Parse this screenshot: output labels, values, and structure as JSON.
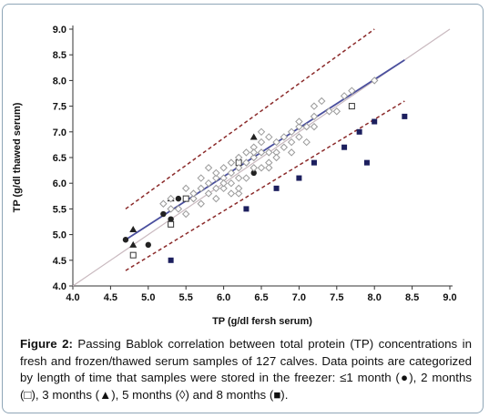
{
  "chart_data": {
    "type": "scatter",
    "xlabel": "TP (g/dl fersh serum)",
    "ylabel": "TP (g/dl thawed serum)",
    "xlim": [
      4.0,
      9.0
    ],
    "ylim": [
      4.0,
      9.0
    ],
    "xticks": [
      "4.0",
      "4.5",
      "5.0",
      "5.5",
      "6.0",
      "6.5",
      "7.0",
      "7.5",
      "8.0",
      "8.5",
      "9.0"
    ],
    "yticks": [
      "4.0",
      "4.5",
      "5.0",
      "5.5",
      "6.0",
      "6.5",
      "7.0",
      "7.5",
      "8.0",
      "8.5",
      "9.0"
    ],
    "grid": false,
    "legend": "none",
    "series": [
      {
        "name": "≤1 month",
        "marker": "filled-circle",
        "color": "#222222",
        "points": [
          [
            4.7,
            4.9
          ],
          [
            5.0,
            4.8
          ],
          [
            5.2,
            5.4
          ],
          [
            5.3,
            5.3
          ],
          [
            5.4,
            5.7
          ],
          [
            6.4,
            6.2
          ]
        ]
      },
      {
        "name": "2 months",
        "marker": "open-square",
        "color": "#333333",
        "points": [
          [
            4.8,
            4.6
          ],
          [
            5.3,
            5.2
          ],
          [
            5.5,
            5.7
          ],
          [
            6.2,
            6.4
          ],
          [
            7.7,
            7.5
          ]
        ]
      },
      {
        "name": "3 months",
        "marker": "filled-triangle",
        "color": "#222222",
        "points": [
          [
            4.8,
            5.1
          ],
          [
            4.8,
            4.8
          ],
          [
            5.3,
            5.7
          ],
          [
            6.4,
            6.9
          ]
        ]
      },
      {
        "name": "5 months",
        "marker": "open-diamond",
        "color": "#9a9a9a",
        "points": [
          [
            5.2,
            5.6
          ],
          [
            5.3,
            5.5
          ],
          [
            5.3,
            5.7
          ],
          [
            5.4,
            5.5
          ],
          [
            5.5,
            5.4
          ],
          [
            5.5,
            5.9
          ],
          [
            5.6,
            5.7
          ],
          [
            5.6,
            5.8
          ],
          [
            5.7,
            5.9
          ],
          [
            5.7,
            6.1
          ],
          [
            5.7,
            5.6
          ],
          [
            5.8,
            5.8
          ],
          [
            5.8,
            6.0
          ],
          [
            5.8,
            6.3
          ],
          [
            5.9,
            5.7
          ],
          [
            5.9,
            5.9
          ],
          [
            5.9,
            6.1
          ],
          [
            5.9,
            6.2
          ],
          [
            6.0,
            5.9
          ],
          [
            6.0,
            6.1
          ],
          [
            6.0,
            6.3
          ],
          [
            6.0,
            6.0
          ],
          [
            6.1,
            5.8
          ],
          [
            6.1,
            6.2
          ],
          [
            6.1,
            6.4
          ],
          [
            6.1,
            6.0
          ],
          [
            6.2,
            6.1
          ],
          [
            6.2,
            6.3
          ],
          [
            6.2,
            6.5
          ],
          [
            6.2,
            5.8
          ],
          [
            6.3,
            6.1
          ],
          [
            6.3,
            6.4
          ],
          [
            6.3,
            6.6
          ],
          [
            6.4,
            6.3
          ],
          [
            6.4,
            6.5
          ],
          [
            6.4,
            6.7
          ],
          [
            6.5,
            6.3
          ],
          [
            6.5,
            6.6
          ],
          [
            6.5,
            6.8
          ],
          [
            6.5,
            7.0
          ],
          [
            6.6,
            6.4
          ],
          [
            6.6,
            6.6
          ],
          [
            6.6,
            6.9
          ],
          [
            6.7,
            6.6
          ],
          [
            6.7,
            6.8
          ],
          [
            6.7,
            6.5
          ],
          [
            6.8,
            6.7
          ],
          [
            6.8,
            6.9
          ],
          [
            6.9,
            6.6
          ],
          [
            6.9,
            6.8
          ],
          [
            6.9,
            7.0
          ],
          [
            7.0,
            7.1
          ],
          [
            7.0,
            7.2
          ],
          [
            7.1,
            7.1
          ],
          [
            7.1,
            6.8
          ],
          [
            7.2,
            7.3
          ],
          [
            7.2,
            7.5
          ],
          [
            7.2,
            7.1
          ],
          [
            7.3,
            7.6
          ],
          [
            7.4,
            7.4
          ],
          [
            7.5,
            7.4
          ],
          [
            7.6,
            7.7
          ],
          [
            7.7,
            7.8
          ],
          [
            8.0,
            8.0
          ],
          [
            7.0,
            6.9
          ],
          [
            6.6,
            6.3
          ],
          [
            6.4,
            6.6
          ],
          [
            6.2,
            5.9
          ]
        ]
      },
      {
        "name": "8 months",
        "marker": "filled-square",
        "color": "#1c1f5e",
        "points": [
          [
            5.3,
            4.5
          ],
          [
            6.3,
            5.5
          ],
          [
            6.7,
            5.9
          ],
          [
            7.0,
            6.1
          ],
          [
            7.2,
            6.4
          ],
          [
            7.6,
            6.7
          ],
          [
            7.8,
            7.0
          ],
          [
            7.9,
            6.4
          ],
          [
            8.0,
            7.2
          ],
          [
            8.4,
            7.3
          ]
        ]
      }
    ],
    "lines": [
      {
        "name": "identity",
        "style": "solid",
        "color": "#c9b9bf",
        "x": [
          4.0,
          9.0
        ],
        "y": [
          4.0,
          9.0
        ]
      },
      {
        "name": "regression",
        "style": "solid",
        "color": "#4a4f9e",
        "x": [
          4.7,
          8.4
        ],
        "y": [
          4.9,
          8.4
        ]
      },
      {
        "name": "upper limit",
        "style": "dashed",
        "color": "#8b2a2a",
        "x": [
          4.7,
          8.0
        ],
        "y": [
          5.5,
          9.0
        ]
      },
      {
        "name": "lower limit",
        "style": "dashed",
        "color": "#8b2a2a",
        "x": [
          4.7,
          8.4
        ],
        "y": [
          4.3,
          7.6
        ]
      }
    ]
  },
  "caption": {
    "label": "Figure 2:",
    "text": " Passing Bablok correlation between total protein (TP) concentrations in fresh and frozen/thawed serum samples of 127 calves. Data points are categorized by length of time that samples were stored in the freezer: ≤1 month (●), 2 months (□), 3 months (▲), 5 months (◊) and 8 months (■)."
  }
}
